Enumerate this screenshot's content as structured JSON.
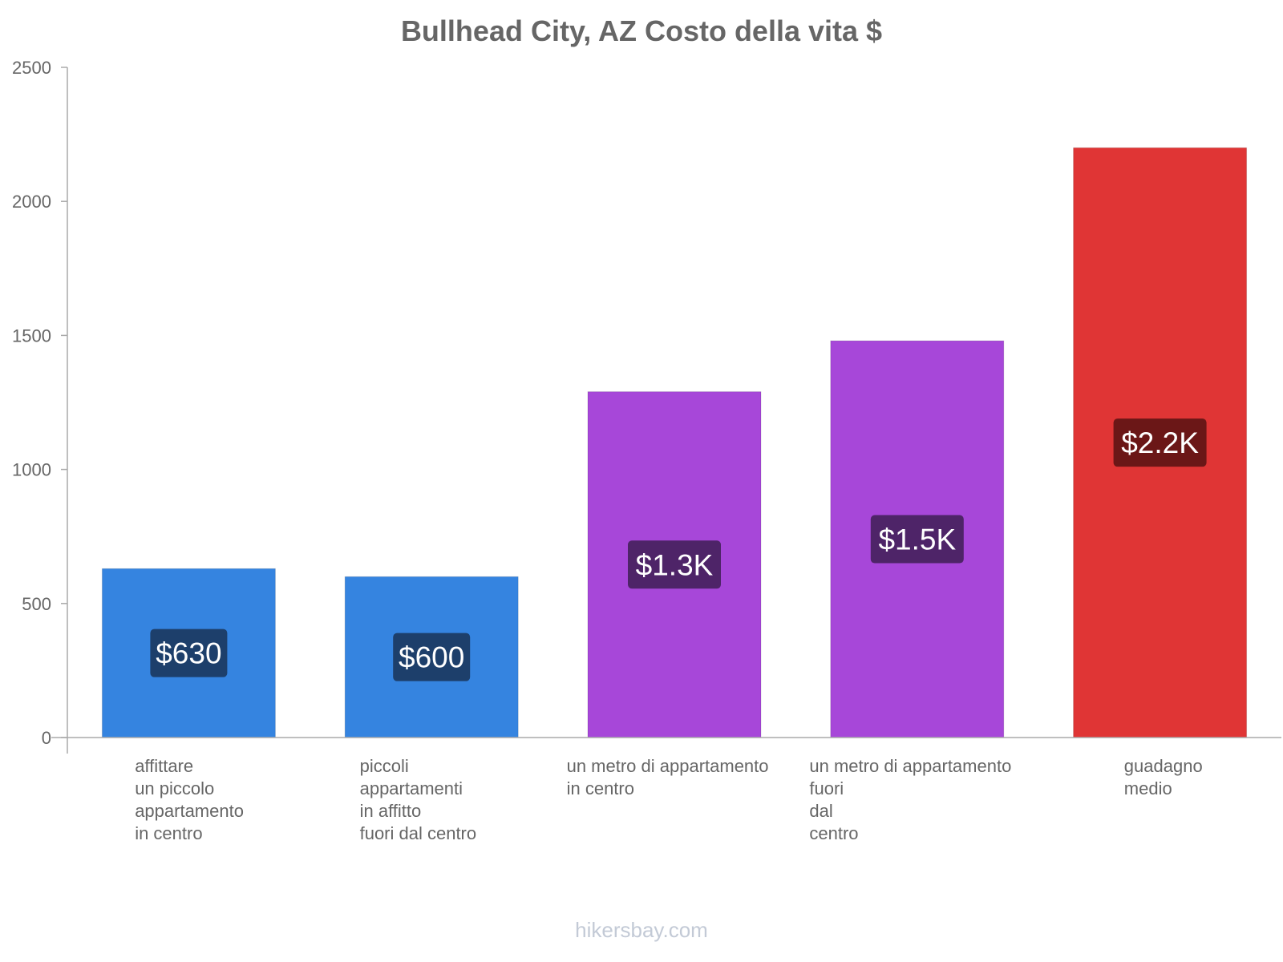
{
  "chart_data": {
    "type": "bar",
    "title": "Bullhead City, AZ Costo della vita $",
    "xlabel": "",
    "ylabel": "",
    "ylim": [
      0,
      2500
    ],
    "yticks": [
      0,
      500,
      1000,
      1500,
      2000,
      2500
    ],
    "categories": [
      [
        "affittare",
        "un piccolo",
        "appartamento",
        "in centro"
      ],
      [
        "piccoli",
        "appartamenti",
        "in affitto",
        "fuori dal centro"
      ],
      [
        "un metro di appartamento",
        "in centro"
      ],
      [
        "un metro di appartamento",
        "fuori",
        "dal",
        "centro"
      ],
      [
        "guadagno",
        "medio"
      ]
    ],
    "values": [
      630,
      600,
      1290,
      1480,
      2200
    ],
    "data_labels": [
      "$630",
      "$600",
      "$1.3K",
      "$1.5K",
      "$2.2K"
    ],
    "bar_colors": [
      "#3584e0",
      "#3584e0",
      "#a747d9",
      "#a747d9",
      "#e03535"
    ],
    "label_bg_colors": [
      "#1d3f6b",
      "#1d3f6b",
      "#4e2468",
      "#4e2468",
      "#6b1717"
    ]
  },
  "watermark": "hikersbay.com"
}
